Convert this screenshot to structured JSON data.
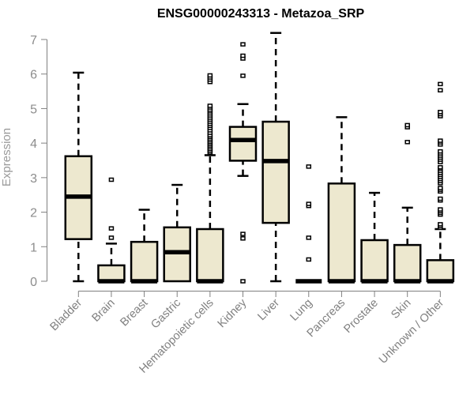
{
  "chart_data": {
    "type": "box",
    "title": "ENSG00000243313 - Metazoa_SRP",
    "xlabel": "",
    "ylabel": "Expression",
    "ylim": [
      0,
      7
    ],
    "yticks": [
      0,
      1,
      2,
      3,
      4,
      5,
      6,
      7
    ],
    "grid": false,
    "colors": {
      "box_fill": "#EDE8CF",
      "stroke": "#000000",
      "axis": "#808080",
      "label": "#8c8c8c"
    },
    "categories": [
      "Bladder",
      "Brain",
      "Breast",
      "Gastric",
      "Hematopoietic cells",
      "Kidney",
      "Liver",
      "Lung",
      "Pancreas",
      "Prostate",
      "Skin",
      "Unknown / Other"
    ],
    "boxes": [
      {
        "name": "Bladder",
        "whisker_low": 0,
        "q1": 1.22,
        "median": 2.45,
        "q3": 3.62,
        "whisker_high": 6.04,
        "outliers": []
      },
      {
        "name": "Brain",
        "whisker_low": 0,
        "q1": 0,
        "median": 0,
        "q3": 0.46,
        "whisker_high": 1.09,
        "outliers": [
          1.26,
          1.53,
          2.94
        ]
      },
      {
        "name": "Breast",
        "whisker_low": 0,
        "q1": 0,
        "median": 0,
        "q3": 1.14,
        "whisker_high": 2.07,
        "outliers": []
      },
      {
        "name": "Gastric",
        "whisker_low": 0,
        "q1": 0,
        "median": 0.84,
        "q3": 1.56,
        "whisker_high": 2.79,
        "outliers": []
      },
      {
        "name": "Hematopoietic cells",
        "whisker_low": 0,
        "q1": 0,
        "median": 0,
        "q3": 1.51,
        "whisker_high": 3.65,
        "outliers": [
          3.73,
          3.78,
          3.83,
          3.88,
          3.93,
          3.98,
          4.03,
          4.08,
          4.13,
          4.18,
          4.23,
          4.3,
          4.37,
          4.44,
          4.5,
          4.56,
          4.62,
          4.68,
          4.74,
          4.8,
          4.86,
          4.92,
          4.97,
          5.03,
          5.08,
          5.77,
          5.84,
          5.9,
          5.96
        ]
      },
      {
        "name": "Kidney",
        "whisker_low": 3.05,
        "q1": 3.49,
        "median": 4.09,
        "q3": 4.47,
        "whisker_high": 5.13,
        "outliers": [
          0,
          1.24,
          1.37,
          5.95,
          6.45,
          6.53,
          6.86
        ]
      },
      {
        "name": "Liver",
        "whisker_low": 0,
        "q1": 1.69,
        "median": 3.48,
        "q3": 4.62,
        "whisker_high": 7.19,
        "outliers": []
      },
      {
        "name": "Lung",
        "whisker_low": 0,
        "q1": 0,
        "median": 0,
        "q3": 0,
        "whisker_high": 0,
        "outliers": [
          0.63,
          1.26,
          2.18,
          2.24,
          3.32
        ]
      },
      {
        "name": "Pancreas",
        "whisker_low": 0,
        "q1": 0,
        "median": 0,
        "q3": 2.83,
        "whisker_high": 4.75,
        "outliers": []
      },
      {
        "name": "Prostate",
        "whisker_low": 0,
        "q1": 0,
        "median": 0,
        "q3": 1.19,
        "whisker_high": 2.56,
        "outliers": []
      },
      {
        "name": "Skin",
        "whisker_low": 0,
        "q1": 0,
        "median": 0,
        "q3": 1.05,
        "whisker_high": 2.13,
        "outliers": [
          4.03,
          4.46,
          4.52
        ]
      },
      {
        "name": "Unknown / Other",
        "whisker_low": 0,
        "q1": 0,
        "median": 0,
        "q3": 0.61,
        "whisker_high": 1.51,
        "outliers": [
          1.55,
          1.6,
          1.65,
          1.93,
          1.98,
          2.03,
          2.08,
          2.34,
          2.39,
          2.6,
          2.65,
          2.7,
          2.84,
          2.9,
          2.96,
          3.02,
          3.08,
          3.14,
          3.2,
          3.26,
          3.3,
          3.45,
          3.52,
          3.58,
          3.64,
          3.7,
          3.76,
          3.96,
          4.02,
          4.07,
          4.78,
          4.84,
          4.9,
          5.53,
          5.71
        ]
      }
    ]
  }
}
